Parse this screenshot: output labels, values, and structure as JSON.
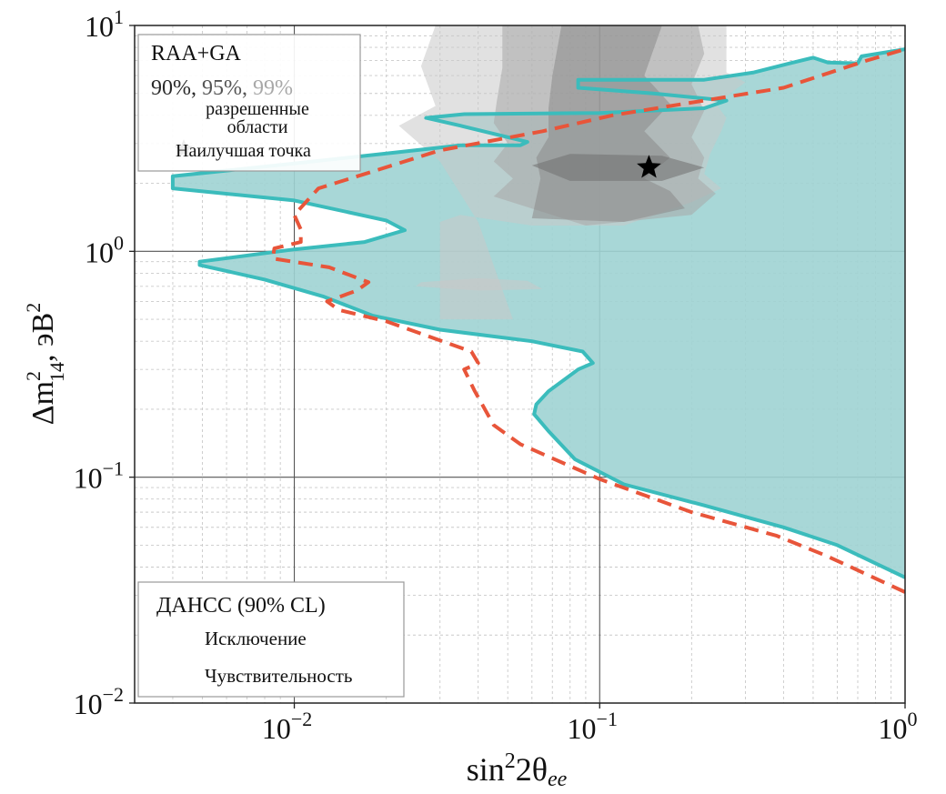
{
  "chart_data": {
    "type": "area",
    "x_scale": "log",
    "y_scale": "log",
    "xlim": [
      0.003,
      1.0
    ],
    "ylim": [
      0.01,
      10.0
    ],
    "grid": true,
    "x_ticks": [
      {
        "value": 0.01,
        "base": "10",
        "exp": "−2"
      },
      {
        "value": 0.1,
        "base": "10",
        "exp": "−1"
      },
      {
        "value": 1.0,
        "base": "10",
        "exp": "0"
      }
    ],
    "y_ticks": [
      {
        "value": 10.0,
        "base": "10",
        "exp": "1"
      },
      {
        "value": 1.0,
        "base": "10",
        "exp": "0"
      },
      {
        "value": 0.1,
        "base": "10",
        "exp": "−1"
      },
      {
        "value": 0.01,
        "base": "10",
        "exp": "−2"
      }
    ],
    "xlabel": {
      "main": "sin",
      "sup": "2",
      "mid": "2θ",
      "sub": "ee"
    },
    "ylabel": {
      "pre": "Δm",
      "sup": "2",
      "sub": "14",
      "post": ", эВ",
      "post_sup": "2"
    },
    "colors": {
      "exclusion_fill": "#9fd3d3",
      "exclusion_line": "#3bbcbc",
      "sensitivity_line": "#e8553a",
      "raa_99": "#c8c8c8",
      "raa_95": "#a8a8a8",
      "raa_90": "#8a8a8a",
      "raa_inner": "#6f6f6f"
    },
    "series": [
      {
        "name": "Исключение",
        "role": "exclusion",
        "points": [
          [
            1.0,
            0.036
          ],
          [
            0.6,
            0.05
          ],
          [
            0.4,
            0.06
          ],
          [
            0.22,
            0.075
          ],
          [
            0.12,
            0.093
          ],
          [
            0.083,
            0.12
          ],
          [
            0.068,
            0.16
          ],
          [
            0.061,
            0.19
          ],
          [
            0.062,
            0.21
          ],
          [
            0.068,
            0.24
          ],
          [
            0.085,
            0.3
          ],
          [
            0.095,
            0.32
          ],
          [
            0.088,
            0.36
          ],
          [
            0.06,
            0.4
          ],
          [
            0.03,
            0.45
          ],
          [
            0.018,
            0.52
          ],
          [
            0.0125,
            0.63
          ],
          [
            0.008,
            0.75
          ],
          [
            0.0049,
            0.87
          ],
          [
            0.0049,
            0.9
          ],
          [
            0.01,
            1.02
          ],
          [
            0.017,
            1.1
          ],
          [
            0.023,
            1.24
          ],
          [
            0.02,
            1.37
          ],
          [
            0.01,
            1.68
          ],
          [
            0.004,
            1.9
          ],
          [
            0.004,
            2.15
          ],
          [
            0.01,
            2.45
          ],
          [
            0.022,
            2.75
          ],
          [
            0.035,
            2.95
          ],
          [
            0.055,
            2.95
          ],
          [
            0.058,
            3.05
          ],
          [
            0.035,
            3.6
          ],
          [
            0.027,
            3.9
          ],
          [
            0.036,
            4.05
          ],
          [
            0.1,
            4.1
          ],
          [
            0.22,
            4.3
          ],
          [
            0.26,
            4.65
          ],
          [
            0.15,
            5.0
          ],
          [
            0.085,
            5.3
          ],
          [
            0.085,
            5.75
          ],
          [
            0.22,
            5.75
          ],
          [
            0.32,
            6.2
          ],
          [
            0.42,
            6.8
          ],
          [
            0.5,
            7.2
          ],
          [
            0.56,
            6.85
          ],
          [
            0.7,
            6.8
          ],
          [
            0.72,
            7.3
          ],
          [
            1.0,
            7.85
          ]
        ]
      },
      {
        "name": "Чувствительность",
        "role": "sensitivity",
        "points": [
          [
            1.0,
            0.031
          ],
          [
            0.55,
            0.045
          ],
          [
            0.38,
            0.055
          ],
          [
            0.2,
            0.07
          ],
          [
            0.1,
            0.098
          ],
          [
            0.055,
            0.14
          ],
          [
            0.045,
            0.17
          ],
          [
            0.039,
            0.24
          ],
          [
            0.036,
            0.3
          ],
          [
            0.04,
            0.32
          ],
          [
            0.038,
            0.36
          ],
          [
            0.02,
            0.49
          ],
          [
            0.014,
            0.55
          ],
          [
            0.0128,
            0.6
          ],
          [
            0.016,
            0.67
          ],
          [
            0.0175,
            0.73
          ],
          [
            0.013,
            0.85
          ],
          [
            0.0085,
            0.93
          ],
          [
            0.0086,
            1.03
          ],
          [
            0.0105,
            1.1
          ],
          [
            0.0105,
            1.25
          ],
          [
            0.01,
            1.45
          ],
          [
            0.012,
            1.9
          ],
          [
            0.017,
            2.2
          ],
          [
            0.03,
            2.8
          ],
          [
            0.065,
            3.4
          ],
          [
            0.11,
            4.0
          ],
          [
            0.4,
            5.3
          ],
          [
            0.75,
            7.0
          ],
          [
            1.0,
            7.85
          ]
        ]
      }
    ],
    "raa_regions": [
      {
        "level": "99%",
        "color_key": "raa_99",
        "polygon": [
          [
            0.03,
            0.5
          ],
          [
            0.052,
            0.5
          ],
          [
            0.04,
            1.35
          ],
          [
            0.03,
            2.5
          ],
          [
            0.022,
            3.6
          ],
          [
            0.029,
            4.4
          ],
          [
            0.026,
            6.6
          ],
          [
            0.029,
            10.0
          ],
          [
            0.26,
            10.0
          ],
          [
            0.26,
            6.2
          ],
          [
            0.3,
            5.6
          ],
          [
            0.24,
            4.5
          ],
          [
            0.26,
            3.9
          ],
          [
            0.25,
            3.4
          ],
          [
            0.23,
            2.7
          ],
          [
            0.22,
            2.2
          ],
          [
            0.25,
            1.9
          ],
          [
            0.2,
            1.65
          ],
          [
            0.12,
            1.3
          ],
          [
            0.06,
            1.3
          ],
          [
            0.035,
            1.45
          ],
          [
            0.03,
            1.35
          ]
        ]
      },
      {
        "level": "95%",
        "color_key": "raa_95",
        "polygon": [
          [
            0.045,
            1.75
          ],
          [
            0.09,
            1.3
          ],
          [
            0.2,
            1.45
          ],
          [
            0.24,
            1.8
          ],
          [
            0.21,
            2.1
          ],
          [
            0.22,
            2.6
          ],
          [
            0.2,
            3.2
          ],
          [
            0.22,
            4.2
          ],
          [
            0.2,
            5.5
          ],
          [
            0.22,
            7.5
          ],
          [
            0.21,
            10.0
          ],
          [
            0.048,
            10.0
          ],
          [
            0.048,
            6.5
          ],
          [
            0.046,
            4.6
          ],
          [
            0.045,
            3.7
          ],
          [
            0.05,
            3.0
          ],
          [
            0.045,
            2.5
          ],
          [
            0.052,
            2.1
          ]
        ]
      },
      {
        "level": "90%",
        "color_key": "raa_90",
        "polygon": [
          [
            0.06,
            1.4
          ],
          [
            0.12,
            1.35
          ],
          [
            0.19,
            1.55
          ],
          [
            0.17,
            1.85
          ],
          [
            0.14,
            2.1
          ],
          [
            0.17,
            2.6
          ],
          [
            0.14,
            3.4
          ],
          [
            0.17,
            4.5
          ],
          [
            0.14,
            6.0
          ],
          [
            0.16,
            10.0
          ],
          [
            0.075,
            10.0
          ],
          [
            0.07,
            6.0
          ],
          [
            0.068,
            4.3
          ],
          [
            0.068,
            3.2
          ],
          [
            0.062,
            2.6
          ],
          [
            0.064,
            2.1
          ]
        ]
      },
      {
        "level": "90% inner",
        "color_key": "raa_inner",
        "polygon": [
          [
            0.08,
            2.05
          ],
          [
            0.16,
            2.05
          ],
          [
            0.22,
            2.35
          ],
          [
            0.16,
            2.65
          ],
          [
            0.08,
            2.7
          ],
          [
            0.06,
            2.4
          ]
        ]
      },
      {
        "level": "island",
        "color_key": "raa_99",
        "polygon": [
          [
            0.025,
            0.7
          ],
          [
            0.04,
            0.67
          ],
          [
            0.065,
            0.68
          ],
          [
            0.058,
            0.74
          ],
          [
            0.04,
            0.76
          ],
          [
            0.026,
            0.73
          ]
        ]
      }
    ],
    "best_fit": {
      "x": 0.145,
      "y": 2.35,
      "label": "Наилучшая точка"
    }
  },
  "legend_top": {
    "title": "RAA+GA",
    "cl_90": "90%,",
    "cl_95": "95%,",
    "cl_99": "99%",
    "line2": "разрешенные",
    "line3": "области",
    "best_label": "Наилучшая точка"
  },
  "legend_bottom": {
    "title": "ДАНСС (90% CL)",
    "exclusion": "Исключение",
    "sensitivity": "Чувствительность"
  }
}
